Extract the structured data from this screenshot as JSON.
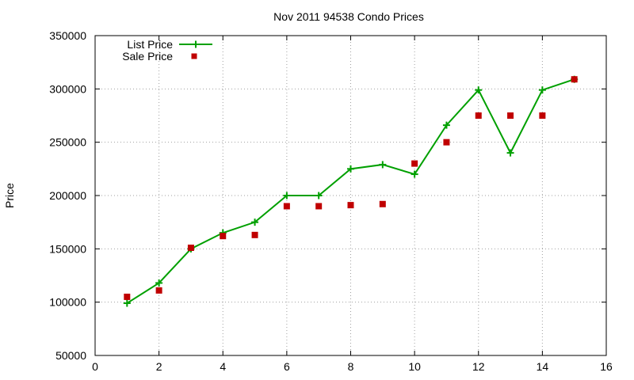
{
  "chart_data": {
    "type": "line",
    "title": "Nov 2011 94538 Condo Prices",
    "xlabel": "",
    "ylabel": "Price",
    "xlim": [
      0,
      16
    ],
    "ylim": [
      50000,
      350000
    ],
    "xticks": [
      0,
      2,
      4,
      6,
      8,
      10,
      12,
      14,
      16
    ],
    "yticks": [
      50000,
      100000,
      150000,
      200000,
      250000,
      300000,
      350000
    ],
    "grid": true,
    "legend_position": "top-left",
    "series": [
      {
        "name": "List Price",
        "style": "line-plus",
        "color": "#00a000",
        "x": [
          1,
          2,
          3,
          4,
          5,
          6,
          7,
          8,
          9,
          10,
          11,
          12,
          13,
          14,
          15
        ],
        "y": [
          99000,
          118000,
          150000,
          165000,
          175000,
          200000,
          200000,
          225000,
          229000,
          220000,
          266000,
          299000,
          240000,
          299000,
          309000
        ]
      },
      {
        "name": "Sale Price",
        "style": "square",
        "color": "#c00000",
        "x": [
          1,
          2,
          3,
          4,
          5,
          6,
          7,
          8,
          9,
          10,
          11,
          12,
          13,
          14,
          15
        ],
        "y": [
          105000,
          111000,
          151000,
          162000,
          163000,
          190000,
          190000,
          191000,
          192000,
          230000,
          250000,
          275000,
          275000,
          275000,
          309000
        ]
      }
    ]
  }
}
